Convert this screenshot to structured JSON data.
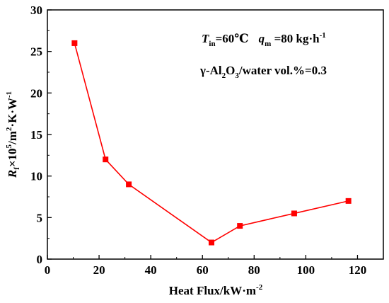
{
  "chart_data": {
    "type": "line",
    "xlabel": "Heat Flux/kW·m",
    "xlabel_sup": "-2",
    "ylabel_parts": {
      "symbol": "R",
      "symbol_sub": "f",
      "times_ten": "×10",
      "exp": "5",
      "unit1": "/m",
      "unit1_exp": "2",
      "unit2": "·K·W",
      "unit2_exp": "-1"
    },
    "xlim": [
      0,
      130
    ],
    "ylim": [
      0,
      30
    ],
    "xticks": [
      0,
      20,
      40,
      60,
      80,
      100,
      120
    ],
    "yticks": [
      0,
      5,
      10,
      15,
      20,
      25,
      30
    ],
    "series": [
      {
        "color": "#ff0000",
        "marker": "square",
        "x": [
          10.5,
          22.5,
          31.5,
          63.5,
          74.5,
          95.5,
          116.5
        ],
        "y": [
          26,
          12,
          9,
          2,
          4,
          5.5,
          7
        ]
      }
    ],
    "annotations": {
      "line1": {
        "T": "T",
        "T_sub": "in",
        "T_val": "=60℃",
        "q": "q",
        "q_sub": "m",
        "q_val": " =80 kg·h",
        "q_exp": "-1"
      },
      "line2": {
        "a": "γ-Al",
        "a_sub1": "2",
        "b": "O",
        "b_sub": "3",
        "c": "/water vol.%=0.3"
      }
    },
    "grid": false,
    "legend": "none"
  }
}
